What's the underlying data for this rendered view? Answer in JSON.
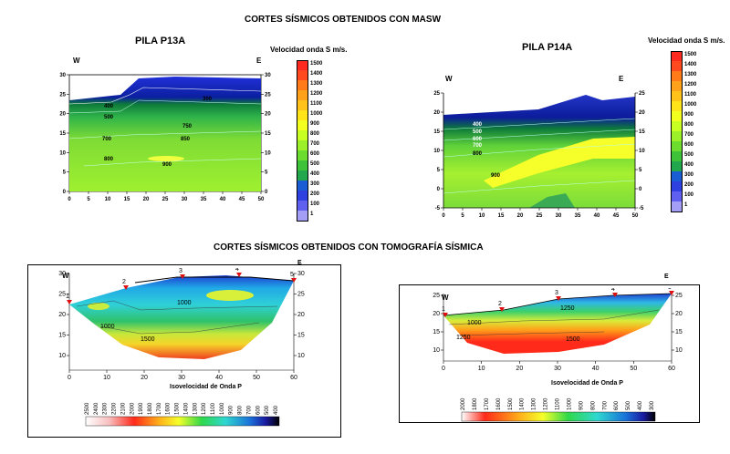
{
  "header": {
    "masw_title": "CORTES SÍSMICOS OBTENIDOS CON MASW",
    "tomo_title": "CORTES SÍSMICOS OBTENIDOS CON TOMOGRAFÍA SÍSMICA"
  },
  "masw_legend": {
    "title": "Velocidad onda S m/s.",
    "p13_values": [
      "1500",
      "1400",
      "1300",
      "1200",
      "1100",
      "1000",
      "900",
      "800",
      "700",
      "600",
      "500",
      "400",
      "300",
      "200",
      "100",
      "1"
    ],
    "p14_values": [
      "1500",
      "1400",
      "1300",
      "1200",
      "1100",
      "1000",
      "900",
      "800",
      "700",
      "600",
      "500",
      "400",
      "300",
      "200",
      "100",
      "1"
    ],
    "colors": [
      "#ff2a1f",
      "#ff4a1f",
      "#ff7b1a",
      "#ffa11a",
      "#ffc21a",
      "#ffe41a",
      "#f2ff1f",
      "#c8ff22",
      "#9cf02a",
      "#6cdc2e",
      "#3ec23a",
      "#23a74d",
      "#1a5cd4",
      "#2e40e0",
      "#5f5ff0",
      "#a49ef6"
    ]
  },
  "chart_data": [
    {
      "type": "heatmap",
      "title": "PILA P13A",
      "left_label": "W",
      "right_label": "E",
      "x_ticks": [
        "0",
        "5",
        "10",
        "15",
        "20",
        "25",
        "30",
        "35",
        "40",
        "45",
        "50"
      ],
      "y_ticks": [
        "0",
        "5",
        "10",
        "15",
        "20",
        "25",
        "30"
      ],
      "contour_labels": [
        "400",
        "500",
        "700",
        "750",
        "800",
        "850",
        "900",
        "300"
      ]
    },
    {
      "type": "heatmap",
      "title": "PILA P14A",
      "left_label": "W",
      "right_label": "E",
      "x_ticks": [
        "0",
        "5",
        "10",
        "15",
        "20",
        "25",
        "30",
        "35",
        "40",
        "45",
        "50"
      ],
      "y_ticks": [
        "-5",
        "0",
        "5",
        "10",
        "15",
        "20",
        "25"
      ],
      "contour_labels": [
        "400",
        "500",
        "600",
        "700",
        "800",
        "900"
      ]
    },
    {
      "type": "heatmap",
      "title": "Isovelocidad de Onda P",
      "left_label": "W",
      "right_label": "E",
      "x_ticks": [
        "0",
        "10",
        "20",
        "30",
        "40",
        "50",
        "60"
      ],
      "y_ticks": [
        "10",
        "15",
        "20",
        "25",
        "30"
      ],
      "geophones": [
        "1",
        "2",
        "3",
        "4",
        "5"
      ],
      "contour_labels": [
        "1000",
        "1000",
        "1500"
      ],
      "colorbar_values": [
        "2500",
        "2400",
        "2300",
        "2200",
        "2100",
        "2000",
        "1900",
        "1800",
        "1700",
        "1600",
        "1500",
        "1400",
        "1300",
        "1200",
        "1100",
        "1000",
        "900",
        "800",
        "700",
        "600",
        "500",
        "400"
      ]
    },
    {
      "type": "heatmap",
      "title": "Isovelocidad de Onda P",
      "left_label": "W",
      "right_label": "E",
      "x_ticks": [
        "0",
        "10",
        "20",
        "30",
        "40",
        "50",
        "60"
      ],
      "y_ticks": [
        "10",
        "15",
        "20",
        "25"
      ],
      "geophones": [
        "1",
        "2",
        "3",
        "4",
        "5"
      ],
      "contour_labels": [
        "1000",
        "1250",
        "1250",
        "1500"
      ],
      "colorbar_values": [
        "2000",
        "1800",
        "1700",
        "1600",
        "1500",
        "1400",
        "1300",
        "1200",
        "1100",
        "1000",
        "900",
        "800",
        "700",
        "600",
        "500",
        "400",
        "300"
      ]
    }
  ]
}
